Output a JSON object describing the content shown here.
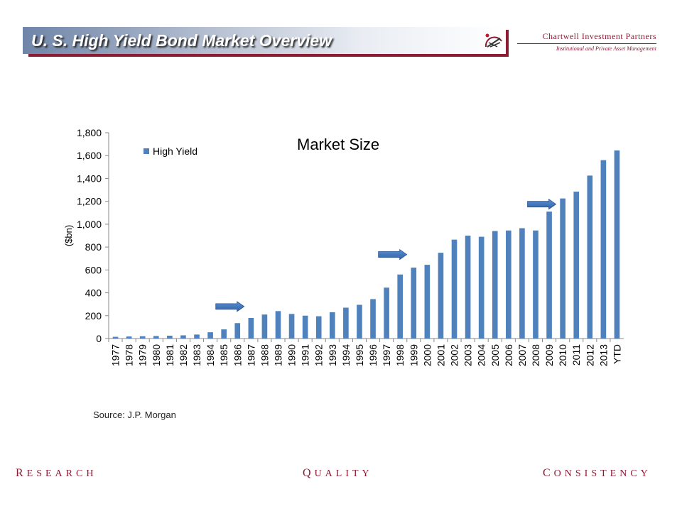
{
  "header": {
    "title": "U. S. High Yield Bond Market Overview",
    "firm_name": "Chartwell Investment Partners",
    "firm_tagline": "Institutional and Private Asset Management",
    "accent_color": "#8c1b34"
  },
  "chart_data": {
    "type": "bar",
    "title": "Market Size",
    "ylabel": "($bn)",
    "xlabel": "",
    "ylim": [
      0,
      1800
    ],
    "yticks": [
      "0",
      "200",
      "400",
      "600",
      "800",
      "1,000",
      "1,200",
      "1,400",
      "1,600",
      "1,800"
    ],
    "grid": false,
    "legend_position": "top-left",
    "categories": [
      "1977",
      "1978",
      "1979",
      "1980",
      "1981",
      "1982",
      "1983",
      "1984",
      "1985",
      "1986",
      "1987",
      "1988",
      "1989",
      "1990",
      "1991",
      "1992",
      "1993",
      "1994",
      "1995",
      "1996",
      "1997",
      "1998",
      "1999",
      "2000",
      "2001",
      "2002",
      "2003",
      "2004",
      "2005",
      "2006",
      "2007",
      "2008",
      "2009",
      "2010",
      "2011",
      "2012",
      "2013",
      "YTD"
    ],
    "series": [
      {
        "name": "High Yield",
        "color": "#4f81bd",
        "values": [
          15,
          18,
          20,
          22,
          25,
          28,
          35,
          55,
          80,
          135,
          180,
          210,
          240,
          215,
          200,
          195,
          230,
          270,
          295,
          345,
          445,
          560,
          620,
          645,
          750,
          865,
          900,
          890,
          940,
          945,
          965,
          945,
          1110,
          1225,
          1285,
          1425,
          1560,
          1645
        ]
      }
    ],
    "annotations": [
      {
        "type": "arrow-right",
        "near": "1985",
        "value": 280
      },
      {
        "type": "arrow-right",
        "near": "1997",
        "value": 735
      },
      {
        "type": "arrow-right",
        "near": "2008",
        "value": 1175
      }
    ]
  },
  "source": "Source: J.P. Morgan",
  "footer": {
    "words": [
      {
        "cap": "R",
        "rest": "ESEARCH"
      },
      {
        "cap": "Q",
        "rest": "UALITY"
      },
      {
        "cap": "C",
        "rest": "ONSISTENCY"
      }
    ]
  }
}
